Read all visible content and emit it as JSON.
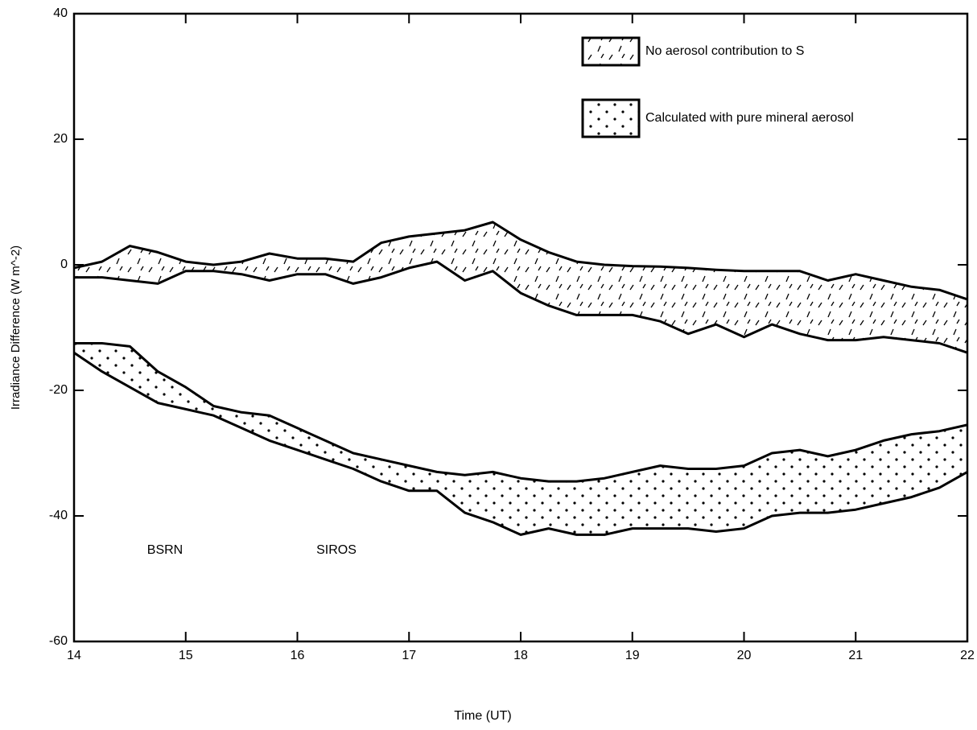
{
  "chart_data": {
    "type": "band",
    "xlabel": "Time (UT)",
    "ylabel": "Irradiance Difference (W m^-2)",
    "x": [
      14,
      14.25,
      14.5,
      14.75,
      15,
      15.25,
      15.5,
      15.75,
      16,
      16.25,
      16.5,
      16.75,
      17,
      17.25,
      17.5,
      17.75,
      18,
      18.25,
      18.5,
      18.75,
      19,
      19.25,
      19.5,
      19.75,
      20,
      20.25,
      20.5,
      20.75,
      21,
      21.25,
      21.5,
      21.75,
      22
    ],
    "series": [
      {
        "name": "No aerosol contribution to S",
        "pattern": "dashes",
        "upper": [
          -0.5,
          0.5,
          3,
          2,
          0.5,
          0,
          0.5,
          1.8,
          1,
          1,
          0.5,
          3.5,
          4.5,
          5,
          5.5,
          6.8,
          4,
          2,
          0.5,
          0,
          -0.2,
          -0.3,
          -0.5,
          -0.8,
          -1,
          -1,
          -1,
          -2.5,
          -1.5,
          -2.5,
          -3.5,
          -4,
          -5.5
        ],
        "lower": [
          -2,
          -2,
          -2.5,
          -3,
          -1,
          -1,
          -1.5,
          -2.5,
          -1.5,
          -1.5,
          -3,
          -2,
          -0.5,
          0.5,
          -2.5,
          -1,
          -4.5,
          -6.5,
          -8,
          -8,
          -8,
          -9,
          -11,
          -9.5,
          -11.5,
          -9.5,
          -11,
          -12,
          -12,
          -11.5,
          -12,
          -12.5,
          -14
        ]
      },
      {
        "name": "Calculated with pure mineral aerosol",
        "pattern": "dots",
        "upper": [
          -12.5,
          -12.5,
          -13,
          -17,
          -19.5,
          -22.5,
          -23.5,
          -24,
          -26,
          -28,
          -30,
          -31,
          -32,
          -33,
          -33.5,
          -33,
          -34,
          -34.5,
          -34.5,
          -34,
          -33,
          -32,
          -32.5,
          -32.5,
          -32,
          -30,
          -29.5,
          -30.5,
          -29.5,
          -28,
          -27,
          -26.5,
          -25.5
        ],
        "lower": [
          -14,
          -17,
          -19.5,
          -22,
          -23,
          -24,
          -26,
          -28,
          -29.5,
          -31,
          -32.5,
          -34.5,
          -36,
          -36,
          -39.5,
          -41,
          -43,
          -42,
          -43,
          -43,
          -42,
          -42,
          -42,
          -42.5,
          -42,
          -40,
          -39.5,
          -39.5,
          -39,
          -38,
          -37,
          -35.5,
          -33
        ]
      }
    ],
    "annotations": [
      "BSRN",
      "SIROS"
    ],
    "xlim": [
      14,
      22
    ],
    "xticks": [
      14,
      15,
      16,
      17,
      18,
      19,
      20,
      21,
      22
    ],
    "ylim": [
      -60,
      40
    ],
    "yticks": [
      -60,
      -40,
      -20,
      0,
      20,
      40
    ]
  }
}
